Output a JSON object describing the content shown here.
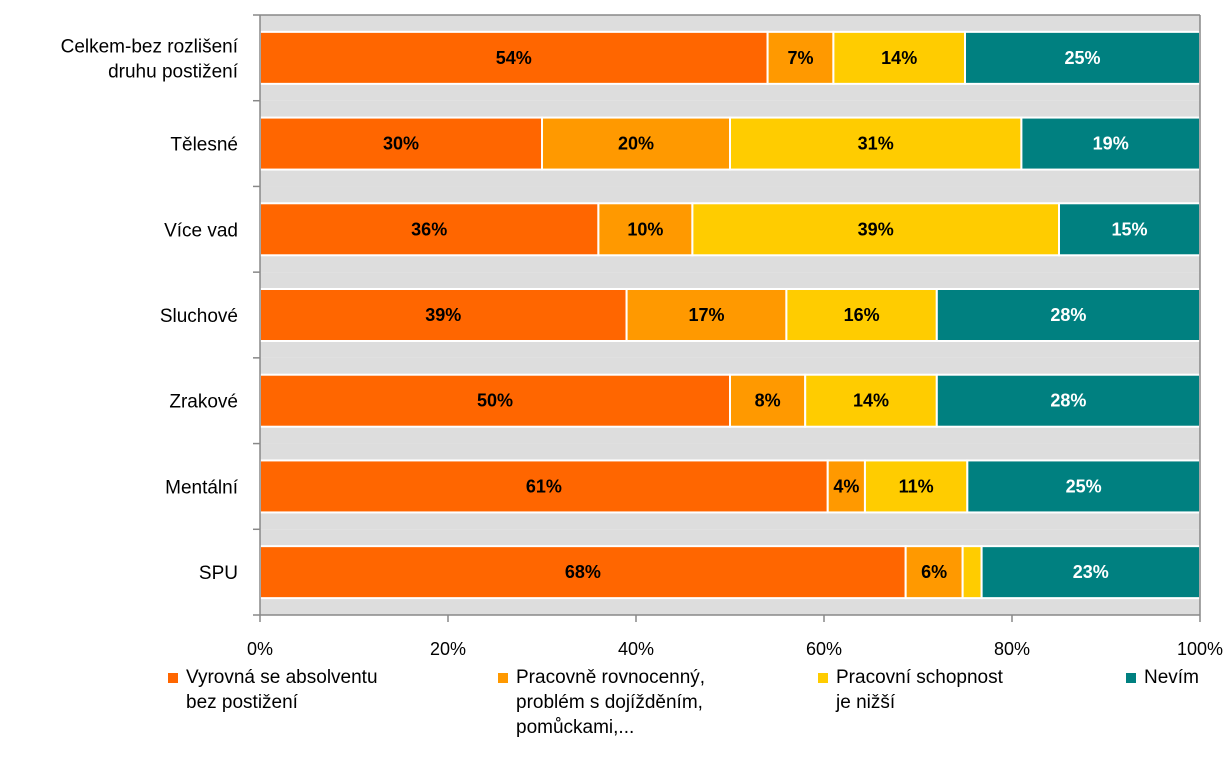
{
  "chart_data": {
    "type": "bar",
    "orientation": "horizontal",
    "stacked": "percent",
    "categories": [
      "Celkem-bez rozlišení\ndruhu postižení",
      "Tělesné",
      "Více vad",
      "Sluchové",
      "Zrakové",
      "Mentální",
      "SPU"
    ],
    "series": [
      {
        "name": "Vyrovná se absolventu\nbez postižení",
        "color": "#ff6600",
        "values": [
          54,
          30,
          36,
          39,
          50,
          61,
          68
        ],
        "labels": [
          "54%",
          "30%",
          "36%",
          "39%",
          "50%",
          "61%",
          "68%"
        ]
      },
      {
        "name": "Pracovně rovnocenný,\nproblém s dojížděním,\npomůckami,...",
        "color": "#ff9900",
        "values": [
          7,
          20,
          10,
          17,
          8,
          4,
          6
        ],
        "labels": [
          "7%",
          "20%",
          "10%",
          "17%",
          "8%",
          "4%",
          "6%"
        ]
      },
      {
        "name": "Pracovní schopnost\nje nižší",
        "color": "#ffcc00",
        "values": [
          14,
          31,
          39,
          16,
          14,
          11,
          2
        ],
        "labels": [
          "14%",
          "31%",
          "39%",
          "16%",
          "14%",
          "11%",
          ""
        ]
      },
      {
        "name": "Nevím",
        "color": "#008080",
        "values": [
          25,
          19,
          15,
          28,
          28,
          25,
          23
        ],
        "labels": [
          "25%",
          "19%",
          "15%",
          "28%",
          "28%",
          "25%",
          "23%"
        ]
      }
    ],
    "xlim": [
      0,
      100
    ],
    "xticks": [
      "0%",
      "20%",
      "40%",
      "60%",
      "80%",
      "100%"
    ],
    "plot_background": "#dddddd",
    "grid": false,
    "legend_position": "bottom"
  }
}
